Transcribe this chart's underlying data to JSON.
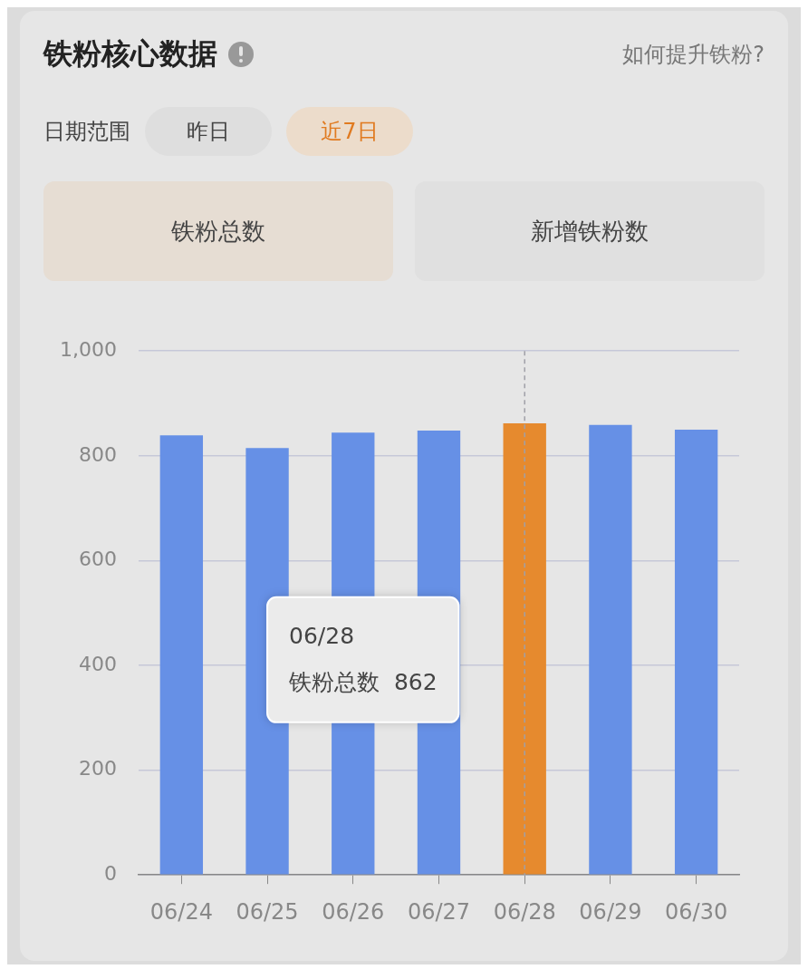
{
  "chart_data": {
    "type": "bar",
    "title": "铁粉核心数据",
    "annotations": [
      "如何提升铁粉?",
      "日期范围",
      "昨日",
      "近7日",
      "铁粉总数",
      "新增铁粉数",
      "06/28",
      "铁粉总数  862"
    ],
    "categories": [
      "06/24",
      "06/25",
      "06/26",
      "06/27",
      "06/28",
      "06/29",
      "06/30"
    ],
    "values": [
      839,
      815,
      844,
      848,
      862,
      859,
      850
    ],
    "colors": [
      "#6690e6",
      "#6690e6",
      "#6690e6",
      "#6690e6",
      "#e68a2e",
      "#6690e6",
      "#6690e6"
    ],
    "ylim": [
      0,
      1000
    ],
    "yticks": [
      0,
      200,
      400,
      600,
      800,
      {
        "value": 1000,
        "label": "1,000"
      }
    ],
    "grid": "y",
    "ref_lines": [
      {
        "axis": "x",
        "value": "06/28",
        "color": "#a0a0a8",
        "line_style": "dashed"
      }
    ]
  }
}
